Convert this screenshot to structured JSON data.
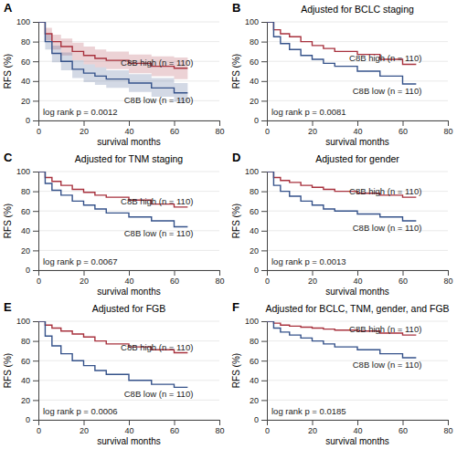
{
  "chart_data": [
    {
      "type": "line",
      "panel": "A",
      "x_label": "survival months",
      "y_label": "RFS (%)",
      "x": [
        0,
        3,
        6,
        10,
        15,
        20,
        25,
        30,
        40,
        50,
        60,
        66
      ],
      "xlim": [
        0,
        80
      ],
      "xticks": [
        0,
        20,
        40,
        60,
        80
      ],
      "ylim": [
        0,
        100
      ],
      "yticks": [
        0,
        20,
        40,
        60,
        80,
        100
      ],
      "grid": true,
      "line_style": "step",
      "annotation": "log rank p = 0.0012",
      "series": [
        {
          "name": "C8B high (n = 110)",
          "color": "#a8323e",
          "values": [
            100,
            88,
            80,
            75,
            70,
            66,
            63,
            61,
            58,
            55,
            53,
            53
          ],
          "lower": [
            100,
            81,
            72,
            66,
            61,
            57,
            54,
            52,
            48,
            45,
            42,
            42
          ],
          "upper": [
            100,
            94,
            87,
            83,
            79,
            75,
            72,
            70,
            67,
            65,
            64,
            64
          ]
        },
        {
          "name": "C8B low (n = 110)",
          "color": "#35528a",
          "values": [
            100,
            80,
            68,
            60,
            52,
            48,
            45,
            42,
            38,
            33,
            28,
            28
          ],
          "lower": [
            100,
            72,
            59,
            51,
            43,
            39,
            36,
            33,
            29,
            24,
            19,
            19
          ],
          "upper": [
            100,
            87,
            76,
            69,
            61,
            57,
            54,
            51,
            47,
            43,
            38,
            38
          ]
        }
      ]
    },
    {
      "type": "line",
      "panel": "B",
      "title": "Adjusted for BCLC staging",
      "x_label": "survival months",
      "y_label": "RFS (%)",
      "x": [
        0,
        3,
        6,
        10,
        15,
        20,
        25,
        30,
        40,
        50,
        60,
        66
      ],
      "xlim": [
        0,
        80
      ],
      "xticks": [
        0,
        20,
        40,
        60,
        80
      ],
      "ylim": [
        0,
        100
      ],
      "yticks": [
        0,
        20,
        40,
        60,
        80,
        100
      ],
      "grid": true,
      "line_style": "step",
      "annotation": "log rank p = 0.0081",
      "series": [
        {
          "name": "C8B high (n = 110)",
          "color": "#a8323e",
          "values": [
            100,
            92,
            88,
            85,
            80,
            76,
            73,
            70,
            67,
            62,
            57,
            57
          ]
        },
        {
          "name": "C8B low (n = 110)",
          "color": "#35528a",
          "values": [
            100,
            85,
            78,
            72,
            66,
            62,
            58,
            55,
            50,
            45,
            37,
            37
          ]
        }
      ]
    },
    {
      "type": "line",
      "panel": "C",
      "title": "Adjusted for TNM staging",
      "x_label": "survival months",
      "y_label": "RFS (%)",
      "x": [
        0,
        3,
        6,
        10,
        15,
        20,
        25,
        30,
        40,
        50,
        60,
        66
      ],
      "xlim": [
        0,
        80
      ],
      "xticks": [
        0,
        20,
        40,
        60,
        80
      ],
      "ylim": [
        0,
        100
      ],
      "yticks": [
        0,
        20,
        40,
        60,
        80,
        100
      ],
      "grid": true,
      "line_style": "step",
      "annotation": "log rank p = 0.0067",
      "series": [
        {
          "name": "C8B high (n = 110)",
          "color": "#a8323e",
          "values": [
            100,
            94,
            90,
            86,
            82,
            79,
            76,
            74,
            71,
            67,
            64,
            64
          ]
        },
        {
          "name": "C8B low (n = 110)",
          "color": "#35528a",
          "values": [
            100,
            88,
            81,
            76,
            70,
            66,
            62,
            58,
            54,
            50,
            44,
            44
          ]
        }
      ]
    },
    {
      "type": "line",
      "panel": "D",
      "title": "Adjusted for gender",
      "x_label": "survival months",
      "y_label": "RFS (%)",
      "x": [
        0,
        3,
        6,
        10,
        15,
        20,
        25,
        30,
        40,
        50,
        60,
        66
      ],
      "xlim": [
        0,
        80
      ],
      "xticks": [
        0,
        20,
        40,
        60,
        80
      ],
      "ylim": [
        0,
        100
      ],
      "yticks": [
        0,
        20,
        40,
        60,
        80,
        100
      ],
      "grid": true,
      "line_style": "step",
      "annotation": "log rank p = 0.0013",
      "series": [
        {
          "name": "C8B high (n = 110)",
          "color": "#a8323e",
          "values": [
            100,
            94,
            91,
            89,
            86,
            84,
            82,
            80,
            78,
            76,
            74,
            74
          ]
        },
        {
          "name": "C8B low (n = 110)",
          "color": "#35528a",
          "values": [
            100,
            86,
            80,
            75,
            70,
            66,
            62,
            60,
            57,
            54,
            50,
            50
          ]
        }
      ]
    },
    {
      "type": "line",
      "panel": "E",
      "title": "Adjusted for FGB",
      "x_label": "survival months",
      "y_label": "RFS (%)",
      "x": [
        0,
        3,
        6,
        10,
        15,
        20,
        25,
        30,
        40,
        50,
        60,
        66
      ],
      "xlim": [
        0,
        80
      ],
      "xticks": [
        0,
        20,
        40,
        60,
        80
      ],
      "ylim": [
        0,
        100
      ],
      "yticks": [
        0,
        20,
        40,
        60,
        80,
        100
      ],
      "grid": true,
      "line_style": "step",
      "annotation": "log rank p = 0.0006",
      "series": [
        {
          "name": "C8B high (n = 110)",
          "color": "#a8323e",
          "values": [
            100,
            96,
            93,
            90,
            87,
            84,
            80,
            77,
            74,
            71,
            68,
            68
          ]
        },
        {
          "name": "C8B low (n = 110)",
          "color": "#35528a",
          "values": [
            100,
            85,
            75,
            67,
            60,
            55,
            50,
            46,
            40,
            36,
            33,
            33
          ]
        }
      ]
    },
    {
      "type": "line",
      "panel": "F",
      "title": "Adjusted for BCLC, TNM, gender, and FGB",
      "x_label": "survival months",
      "y_label": "RFS (%)",
      "x": [
        0,
        3,
        6,
        10,
        15,
        20,
        25,
        30,
        40,
        50,
        60,
        66
      ],
      "xlim": [
        0,
        80
      ],
      "xticks": [
        0,
        20,
        40,
        60,
        80
      ],
      "ylim": [
        0,
        100
      ],
      "yticks": [
        0,
        20,
        40,
        60,
        80,
        100
      ],
      "grid": true,
      "line_style": "step",
      "annotation": "log rank p = 0.0185",
      "series": [
        {
          "name": "C8B high (n = 110)",
          "color": "#a8323e",
          "values": [
            100,
            98,
            96,
            95,
            94,
            93,
            92,
            91,
            90,
            88,
            86,
            86
          ]
        },
        {
          "name": "C8B low (n = 110)",
          "color": "#35528a",
          "values": [
            100,
            93,
            89,
            86,
            83,
            80,
            77,
            74,
            71,
            67,
            63,
            63
          ]
        }
      ]
    }
  ]
}
